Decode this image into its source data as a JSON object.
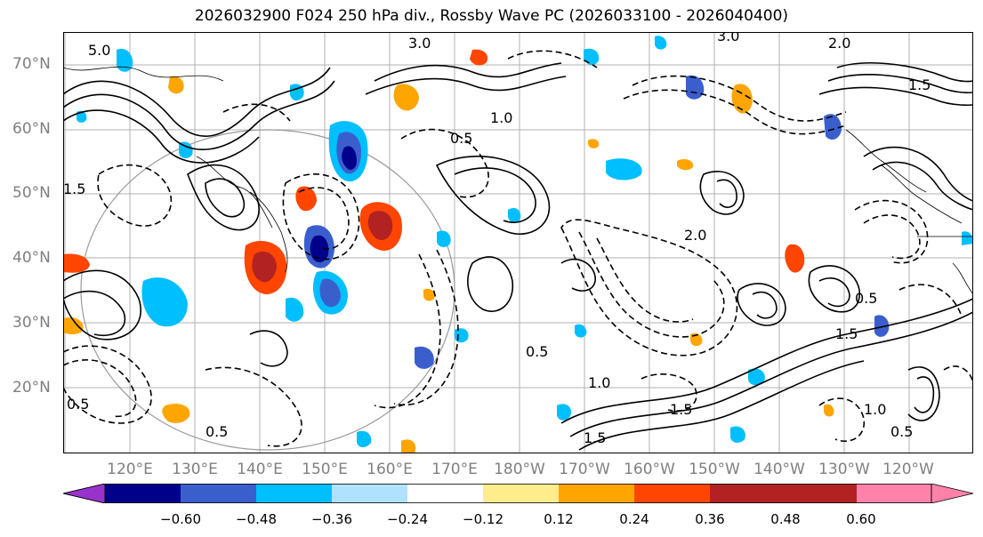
{
  "title": "2026032900 F024 250 hPa div., Rossby Wave PC (2026033100 - 2026040400)",
  "lat_labels": [
    "70°N",
    "60°N",
    "50°N",
    "40°N",
    "30°N",
    "20°N"
  ],
  "lon_labels": [
    "120°E",
    "130°E",
    "140°E",
    "150°E",
    "160°E",
    "170°E",
    "180°W",
    "170°W",
    "160°W",
    "150°W",
    "140°W",
    "130°W",
    "120°W"
  ],
  "colorbar": {
    "ticks": [
      "−0.60",
      "−0.48",
      "−0.36",
      "−0.24",
      "−0.12",
      "0.12",
      "0.24",
      "0.36",
      "0.48",
      "0.60"
    ],
    "colors": {
      "lt_neg060": "#9932cc",
      "neg060_neg048": "#00008b",
      "neg048_neg036": "#3a5fcd",
      "neg036_neg024": "#00bfff",
      "neg024_neg012": "#b0e2ff",
      "neg012_012": "#ffffff",
      "pos012_024": "#ffec8b",
      "pos024_036": "#ffa500",
      "pos036_048": "#ff4500",
      "pos048_060": "#b22222",
      "gt_060": "#ff82ab"
    }
  },
  "contour_labels": [
    "5.0",
    "3.0",
    "3.0",
    "2.0",
    "1.5",
    "0.5",
    "1.0",
    "2.0",
    "0.5",
    "1.5",
    "0.5",
    "0.5",
    "1.5",
    "1.0",
    "1.5",
    "1.0",
    "0.5",
    "0.5",
    "1.5"
  ]
}
